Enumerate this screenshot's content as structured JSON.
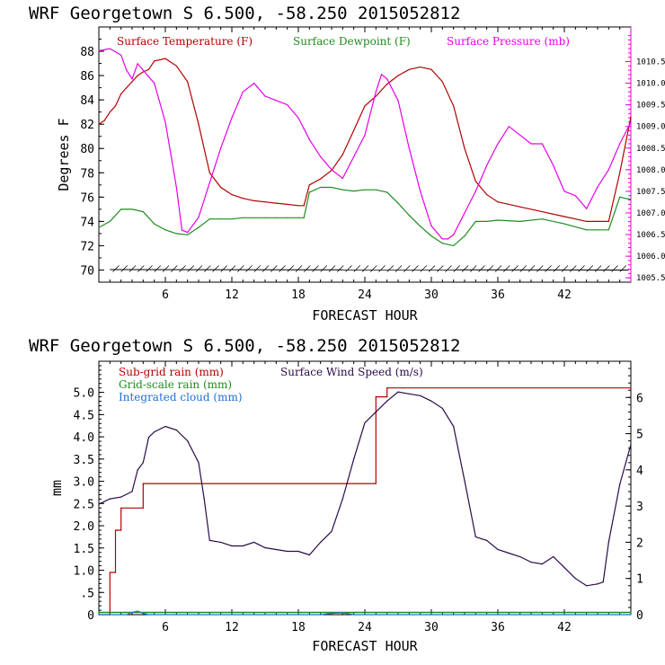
{
  "chart_data": [
    {
      "type": "line",
      "title": "WRF   Georgetown S   6.500, -58.250  2015052812",
      "xlabel": "FORECAST HOUR",
      "ylabel": "Degrees F",
      "xlim": [
        0,
        48
      ],
      "ylim": [
        69,
        90
      ],
      "y2lim": [
        1005.4,
        1011.3
      ],
      "x_ticks": [
        6,
        12,
        18,
        24,
        30,
        36,
        42
      ],
      "y_ticks": [
        70,
        72,
        74,
        76,
        78,
        80,
        82,
        84,
        86,
        88
      ],
      "y2_ticks": [
        "1005.5",
        "1006.0",
        "1006.5",
        "1007.0",
        "1007.5",
        "1008.0",
        "1008.5",
        "1009.0",
        "1009.5",
        "1010.0",
        "1010.5"
      ],
      "legend_placement": "top",
      "colors": {
        "temperature": "#b30000",
        "dewpoint": "#1e8c1e",
        "pressure": "#e600e6",
        "wind_barbs": "#000000"
      },
      "series": [
        {
          "name": "Surface Temperature (F)",
          "axis": "left",
          "x": [
            0,
            0.5,
            1,
            1.5,
            2,
            2.5,
            3,
            3.5,
            4,
            4.5,
            5,
            6,
            7,
            8,
            9,
            10,
            11,
            12,
            13,
            14,
            15,
            16,
            17,
            18,
            18.5,
            19,
            20,
            21,
            22,
            23,
            24,
            25,
            26,
            27,
            28,
            29,
            30,
            31,
            32,
            33,
            34,
            35,
            36,
            38,
            40,
            42,
            44,
            45,
            46,
            47,
            48
          ],
          "y": [
            82,
            82.3,
            83,
            83.5,
            84.5,
            85,
            85.5,
            86,
            86.3,
            86.5,
            87.2,
            87.4,
            86.8,
            85.5,
            82,
            78,
            76.8,
            76.2,
            75.9,
            75.7,
            75.6,
            75.5,
            75.4,
            75.3,
            75.3,
            77,
            77.5,
            78.2,
            79.5,
            81.5,
            83.5,
            84.3,
            85.3,
            86,
            86.5,
            86.7,
            86.5,
            85.5,
            83.5,
            80,
            77.3,
            76.2,
            75.6,
            75.2,
            74.8,
            74.4,
            74,
            74,
            74,
            78,
            82.6
          ]
        },
        {
          "name": "Surface Dewpoint (F)",
          "axis": "left",
          "x": [
            0,
            1,
            2,
            3,
            4,
            5,
            6,
            7,
            8,
            9,
            10,
            11,
            12,
            13,
            14,
            15,
            16,
            17,
            18,
            18.5,
            19,
            20,
            21,
            22,
            23,
            24,
            25,
            26,
            27,
            28,
            29,
            30,
            31,
            32,
            33,
            34,
            35,
            36,
            38,
            40,
            42,
            44,
            45,
            46,
            47,
            48
          ],
          "y": [
            73.5,
            74,
            75,
            75,
            74.8,
            73.8,
            73.3,
            73,
            72.9,
            73.5,
            74.2,
            74.2,
            74.2,
            74.3,
            74.3,
            74.3,
            74.3,
            74.3,
            74.3,
            74.3,
            76.4,
            76.8,
            76.8,
            76.6,
            76.5,
            76.6,
            76.6,
            76.4,
            75.5,
            74.5,
            73.6,
            72.8,
            72.2,
            72,
            72.8,
            74,
            74,
            74.1,
            74,
            74.2,
            73.8,
            73.3,
            73.3,
            73.3,
            76,
            75.8
          ]
        },
        {
          "name": "Surface Pressure (mb)",
          "axis": "right",
          "x": [
            0,
            1,
            2,
            2.5,
            3,
            3.5,
            4,
            4.5,
            5,
            6,
            7,
            7.5,
            8,
            9,
            10,
            11,
            12,
            13,
            14,
            15,
            16,
            17,
            18,
            19,
            20,
            21,
            22,
            23,
            24,
            25,
            25.5,
            26,
            27,
            28,
            29,
            30,
            31,
            31.5,
            32,
            33,
            34,
            35,
            36,
            37,
            38,
            39,
            40,
            41,
            42,
            43,
            44,
            45,
            46,
            47,
            48
          ],
          "y": [
            1010.75,
            1010.8,
            1010.65,
            1010.3,
            1010.1,
            1010.45,
            1010.3,
            1010.15,
            1010.0,
            1009.1,
            1007.6,
            1006.6,
            1006.55,
            1006.9,
            1007.7,
            1008.5,
            1009.2,
            1009.8,
            1010.0,
            1009.7,
            1009.6,
            1009.5,
            1009.2,
            1008.7,
            1008.3,
            1008.0,
            1007.8,
            1008.3,
            1008.8,
            1009.8,
            1010.2,
            1010.1,
            1009.6,
            1008.5,
            1007.5,
            1006.7,
            1006.4,
            1006.4,
            1006.5,
            1007.0,
            1007.5,
            1008.1,
            1008.6,
            1009.0,
            1008.8,
            1008.6,
            1008.6,
            1008.1,
            1007.5,
            1007.4,
            1007.1,
            1007.6,
            1008.0,
            1008.6,
            1009.1
          ]
        }
      ]
    },
    {
      "type": "line",
      "title": "WRF   Georgetown S   6.500, -58.250  2015052812",
      "xlabel": "FORECAST HOUR",
      "ylabel": "mm",
      "xlim": [
        0,
        48
      ],
      "ylim": [
        0,
        5.7
      ],
      "y2lim": [
        0,
        7
      ],
      "x_ticks": [
        6,
        12,
        18,
        24,
        30,
        36,
        42
      ],
      "y_ticks": [
        "0",
        ".5",
        "1.0",
        "1.5",
        "2.0",
        "2.5",
        "3.0",
        "3.5",
        "4.0",
        "4.5",
        "5.0"
      ],
      "y2_ticks": [
        "0",
        "1",
        "2",
        "3",
        "4",
        "5",
        "6"
      ],
      "legend_placement": "top-left",
      "colors": {
        "subgrid": "#b30000",
        "gridscale": "#1e8c1e",
        "cloud": "#1f6fd6",
        "wind": "#2a0a4a"
      },
      "series": [
        {
          "name": "Sub-grid rain (mm)",
          "axis": "left",
          "x": [
            0,
            1,
            1,
            1.5,
            1.5,
            2,
            2,
            4,
            4,
            25,
            25,
            26,
            26,
            48
          ],
          "y": [
            0,
            0,
            0.95,
            0.95,
            1.9,
            1.9,
            2.4,
            2.4,
            2.95,
            2.95,
            4.9,
            4.9,
            5.1,
            5.1
          ]
        },
        {
          "name": "Grid-scale rain (mm)",
          "axis": "left",
          "x": [
            0,
            48
          ],
          "y": [
            0.05,
            0.05
          ]
        },
        {
          "name": "Integrated cloud (mm)",
          "axis": "left",
          "x": [
            0,
            2.5,
            3,
            3.5,
            4,
            4.5,
            20,
            21,
            22,
            23,
            48
          ],
          "y": [
            0,
            0,
            0.05,
            0.08,
            0.03,
            0,
            0,
            0.03,
            0.04,
            0,
            0
          ]
        },
        {
          "name": "Surface Wind Speed (m/s)",
          "axis": "right",
          "x": [
            0,
            1,
            2,
            3,
            3.5,
            4,
            4.5,
            5,
            6,
            7,
            8,
            9,
            9.5,
            10,
            11,
            12,
            13,
            14,
            15,
            16,
            17,
            18,
            19,
            20,
            21,
            22,
            23,
            24,
            25,
            26,
            27,
            28,
            29,
            30,
            31,
            32,
            33,
            34,
            35,
            36,
            37,
            38,
            39,
            40,
            41,
            42,
            43,
            44,
            45,
            45.5,
            46,
            47,
            48
          ],
          "y": [
            3.05,
            3.2,
            3.25,
            3.4,
            4,
            4.2,
            4.9,
            5.05,
            5.2,
            5.1,
            4.8,
            4.2,
            3.2,
            2.05,
            2.0,
            1.9,
            1.9,
            2.0,
            1.85,
            1.8,
            1.75,
            1.75,
            1.65,
            2.0,
            2.3,
            3.2,
            4.3,
            5.3,
            5.6,
            5.9,
            6.15,
            6.1,
            6.05,
            5.9,
            5.7,
            5.2,
            3.7,
            2.15,
            2.05,
            1.8,
            1.7,
            1.6,
            1.45,
            1.4,
            1.6,
            1.3,
            1.0,
            0.8,
            0.85,
            0.9,
            2.0,
            3.6,
            4.7
          ]
        }
      ]
    }
  ]
}
